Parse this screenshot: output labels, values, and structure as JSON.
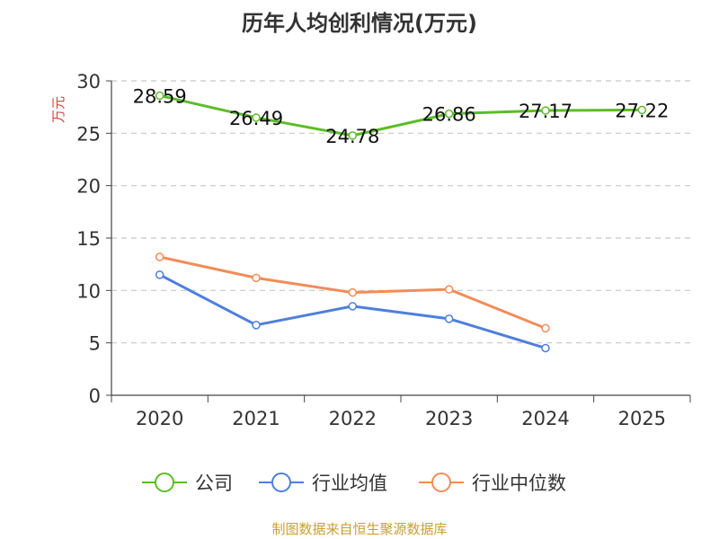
{
  "chart_data": {
    "type": "line",
    "title": "历年人均创利情况(万元)",
    "ylabel": "万元",
    "xlabel": "",
    "categories": [
      "2020",
      "2021",
      "2022",
      "2023",
      "2024",
      "2025"
    ],
    "ylim": [
      0,
      30
    ],
    "yticks": [
      0,
      5,
      10,
      15,
      20,
      25,
      30
    ],
    "grid": true,
    "legend": "bottom",
    "series": [
      {
        "name": "公司",
        "color": "#5cbd27",
        "values": [
          28.59,
          26.49,
          24.78,
          26.86,
          27.17,
          27.22
        ],
        "labels": [
          "28.59",
          "26.49",
          "24.78",
          "26.86",
          "27.17",
          "27.22"
        ]
      },
      {
        "name": "行业均值",
        "color": "#4e7fdb",
        "values": [
          11.5,
          6.7,
          8.5,
          7.3,
          4.5,
          null
        ]
      },
      {
        "name": "行业中位数",
        "color": "#f28c58",
        "values": [
          13.2,
          11.2,
          9.8,
          10.1,
          6.4,
          null
        ]
      }
    ]
  },
  "source": "制图数据来自恒生聚源数据库"
}
